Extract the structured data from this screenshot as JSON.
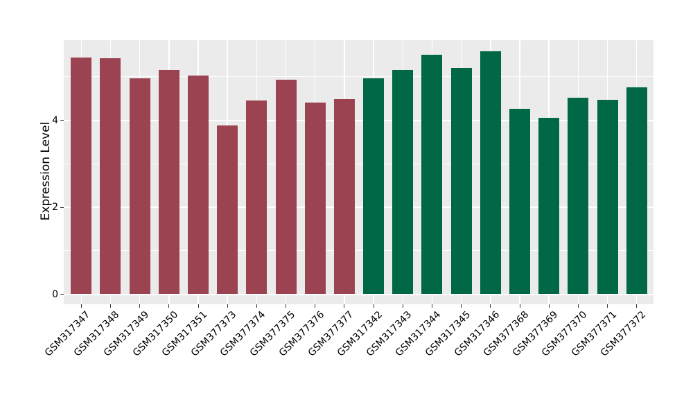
{
  "chart_data": {
    "type": "bar",
    "title": "",
    "xlabel": "",
    "ylabel": "Expression Level",
    "yticks_major": [
      0,
      2,
      4
    ],
    "yticks_minor": [
      1,
      3,
      5
    ],
    "ylim": [
      -0.23,
      5.85
    ],
    "grid": true,
    "legend_position": "none",
    "panel_bg_color": "#ebebeb",
    "grid_color": "#ffffff",
    "tick_color": "#333333",
    "text_color": "#000000",
    "group_colors": {
      "group1": "#9b4351",
      "group2": "#006747"
    },
    "categories": [
      "GSM317347",
      "GSM317348",
      "GSM317349",
      "GSM317350",
      "GSM317351",
      "GSM377373",
      "GSM377374",
      "GSM377375",
      "GSM377376",
      "GSM377377",
      "GSM317342",
      "GSM317343",
      "GSM317344",
      "GSM317345",
      "GSM317346",
      "GSM377368",
      "GSM377369",
      "GSM377370",
      "GSM377371",
      "GSM377372"
    ],
    "bars": [
      {
        "label": "GSM317347",
        "value": 5.45,
        "group": "group1"
      },
      {
        "label": "GSM317348",
        "value": 5.43,
        "group": "group1"
      },
      {
        "label": "GSM317349",
        "value": 4.96,
        "group": "group1"
      },
      {
        "label": "GSM317350",
        "value": 5.16,
        "group": "group1"
      },
      {
        "label": "GSM317351",
        "value": 5.03,
        "group": "group1"
      },
      {
        "label": "GSM377373",
        "value": 3.88,
        "group": "group1"
      },
      {
        "label": "GSM377374",
        "value": 4.45,
        "group": "group1"
      },
      {
        "label": "GSM377375",
        "value": 4.93,
        "group": "group1"
      },
      {
        "label": "GSM377376",
        "value": 4.41,
        "group": "group1"
      },
      {
        "label": "GSM377377",
        "value": 4.49,
        "group": "group1"
      },
      {
        "label": "GSM317342",
        "value": 4.96,
        "group": "group2"
      },
      {
        "label": "GSM317343",
        "value": 5.16,
        "group": "group2"
      },
      {
        "label": "GSM317344",
        "value": 5.51,
        "group": "group2"
      },
      {
        "label": "GSM317345",
        "value": 5.2,
        "group": "group2"
      },
      {
        "label": "GSM317346",
        "value": 5.59,
        "group": "group2"
      },
      {
        "label": "GSM377368",
        "value": 4.26,
        "group": "group2"
      },
      {
        "label": "GSM377369",
        "value": 4.06,
        "group": "group2"
      },
      {
        "label": "GSM377370",
        "value": 4.52,
        "group": "group2"
      },
      {
        "label": "GSM377371",
        "value": 4.47,
        "group": "group2"
      },
      {
        "label": "GSM377372",
        "value": 4.76,
        "group": "group2"
      }
    ]
  }
}
